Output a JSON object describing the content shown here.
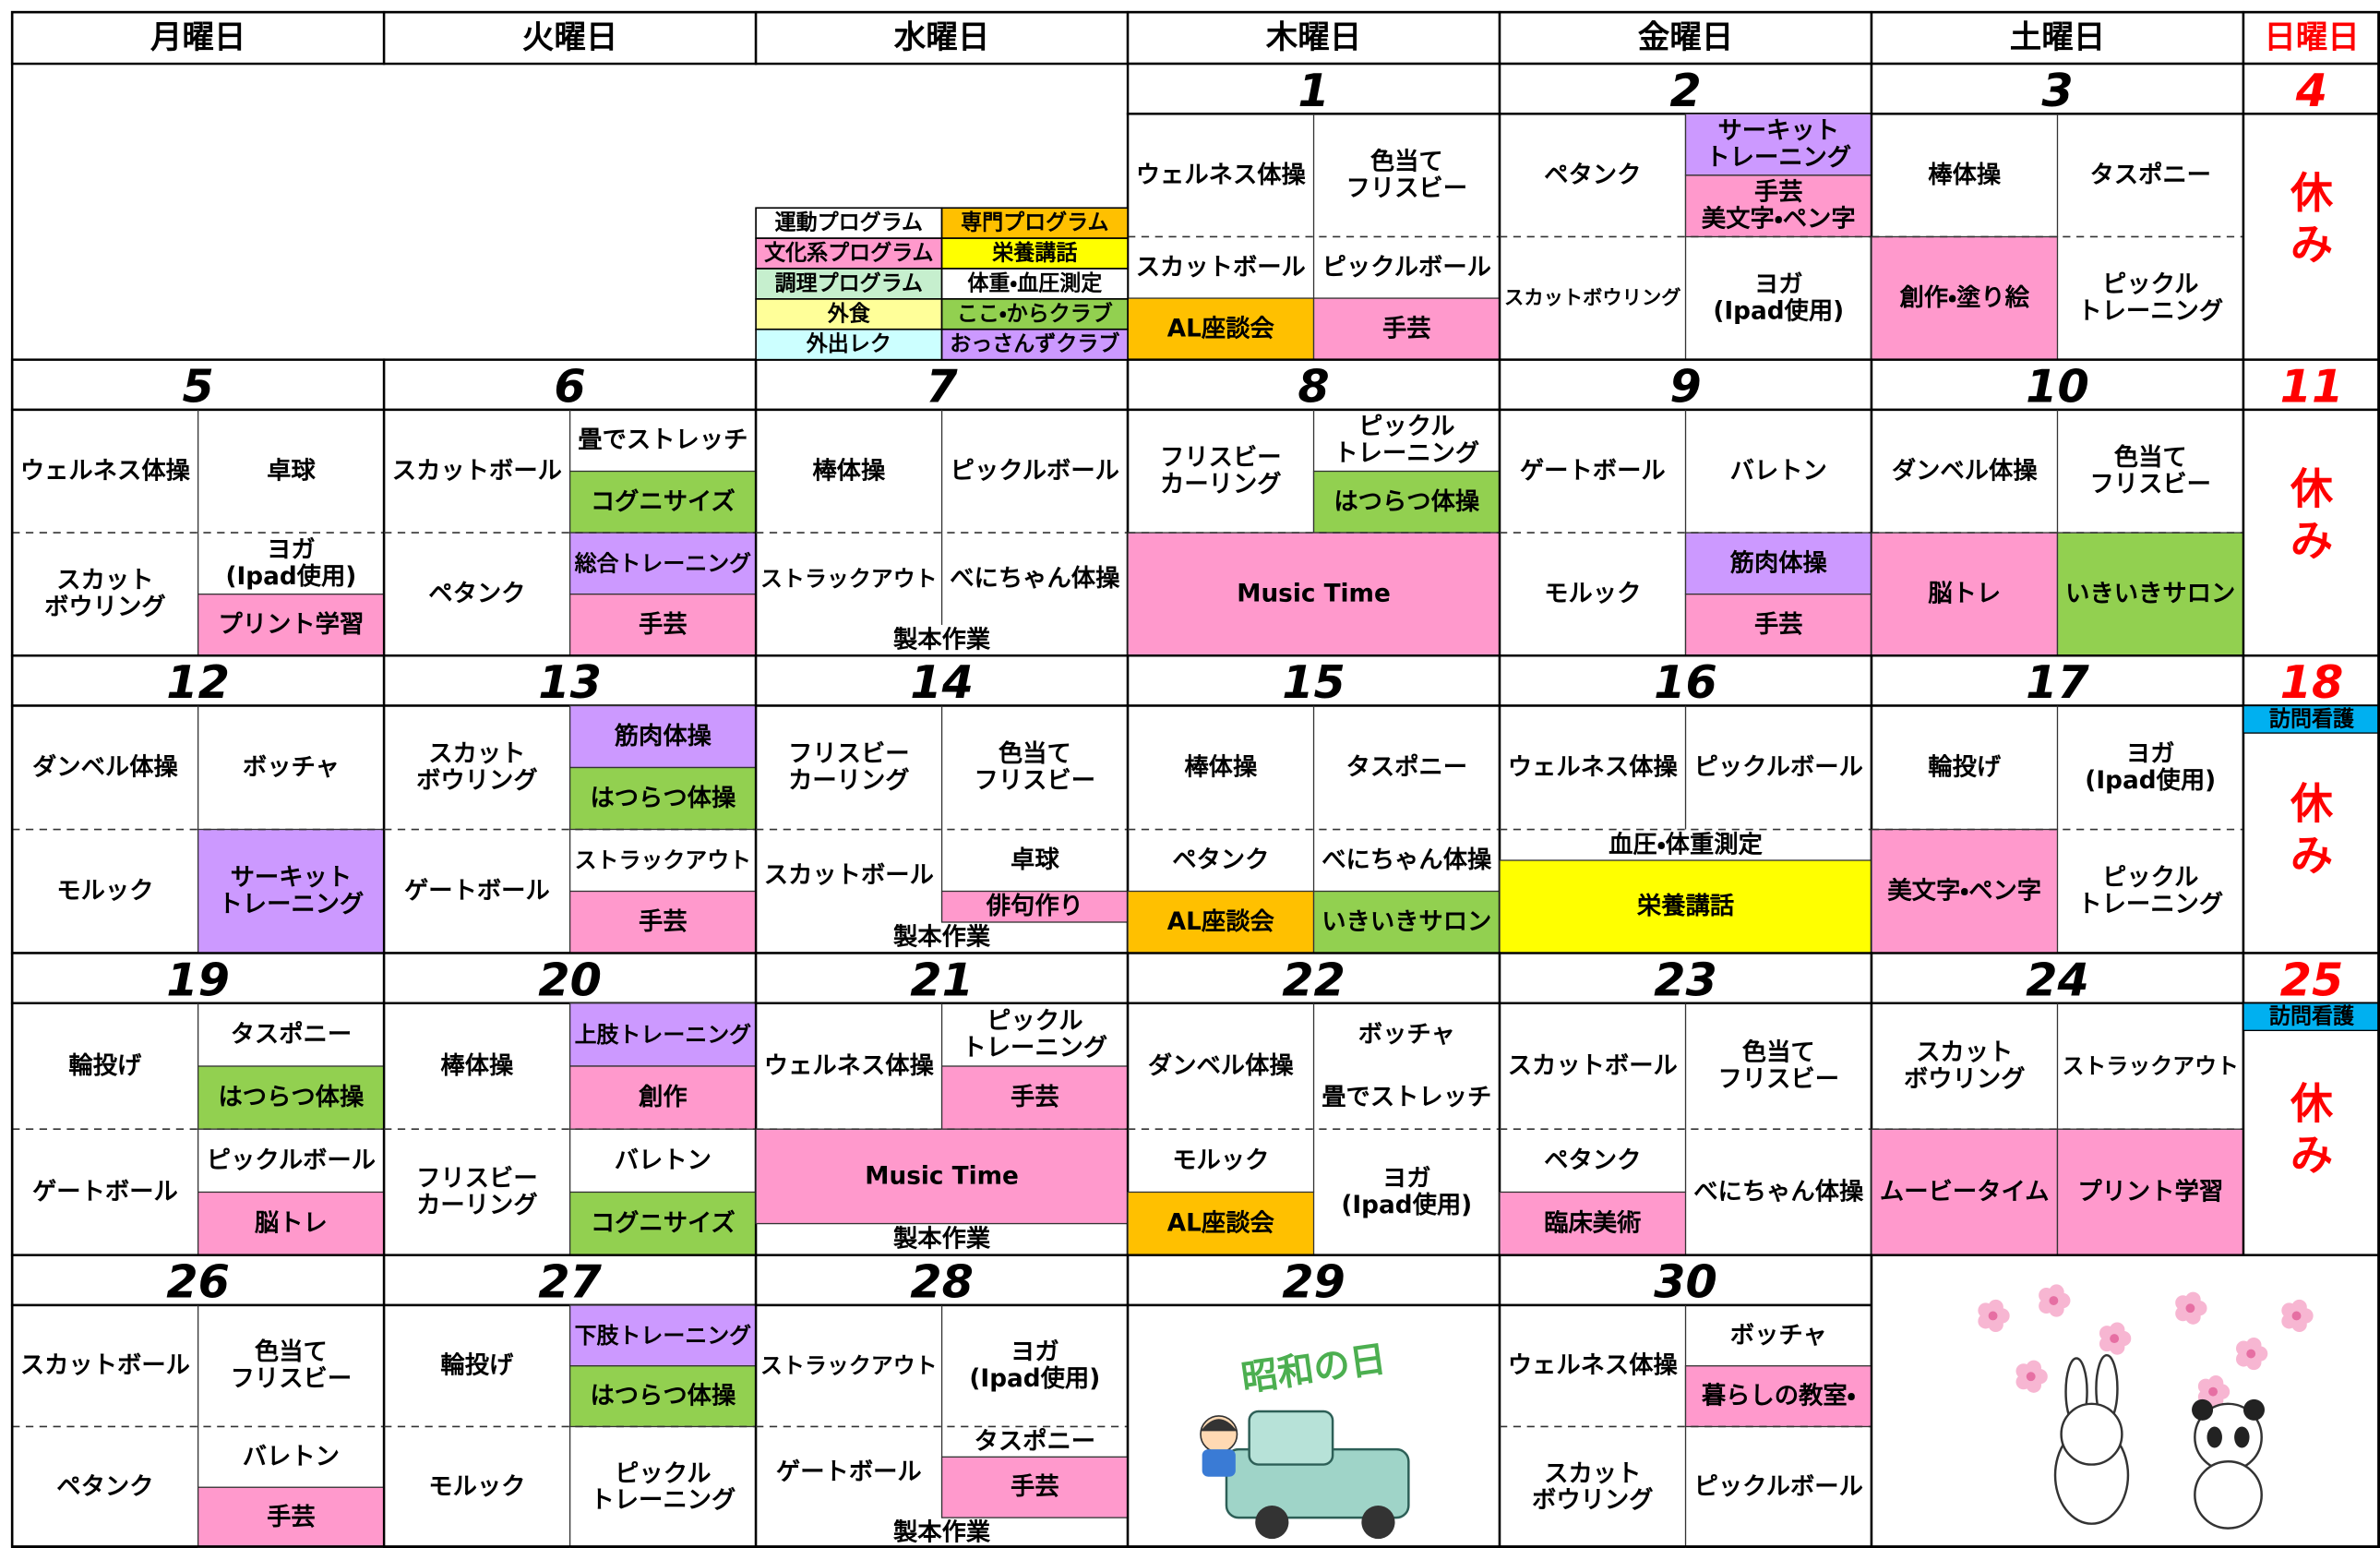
{
  "header": {
    "days": [
      "月曜日",
      "火曜日",
      "水曜日",
      "木曜日",
      "金曜日",
      "土曜日",
      "日曜日"
    ]
  },
  "legend": [
    {
      "text": "運動プログラム"
    },
    {
      "text": "専門プログラム",
      "color": "#ffc000"
    },
    {
      "text": "文化系プログラム",
      "color": "#ff99cc"
    },
    {
      "text": "栄養講話",
      "color": "#ffff00"
    },
    {
      "text": "調理プログラム",
      "color": "#c6efce"
    },
    {
      "text": "体重・血圧測定"
    },
    {
      "text": "外食",
      "color": "#ffff99"
    },
    {
      "text": "ここ・からクラブ",
      "color": "#92d050"
    },
    {
      "text": "外出レク",
      "color": "#ccffff"
    },
    {
      "text": "おっさんずクラブ",
      "color": "#cc99ff"
    }
  ],
  "weeks": [
    [
      null,
      null,
      null,
      {
        "date": 1,
        "activities": [
          {
            "text": "ウェルネス体操"
          },
          {
            "text": "色当て\nフリスビー"
          },
          {
            "text": "スカットボール"
          },
          {
            "text": "ピックルボール"
          },
          {
            "text": "AL座談会",
            "color": "#ffc000"
          },
          {
            "text": "手芸",
            "color": "#ff99cc"
          }
        ]
      },
      {
        "date": 2,
        "activities": [
          {
            "text": "ペタンク"
          },
          {
            "text": "サーキット\nトレーニング",
            "color": "#cc99ff"
          },
          {
            "text": "手芸\n美文字・ペン字",
            "color": "#ff99cc"
          },
          {
            "text": "スカットボウリング"
          },
          {
            "text": "ヨガ\n(Ipad使用)"
          }
        ]
      },
      {
        "date": 3,
        "activities": [
          {
            "text": "棒体操"
          },
          {
            "text": "タスポニー"
          },
          {
            "text": "創作・塗り絵",
            "color": "#ff99cc"
          },
          {
            "text": "ピックル\nトレーニング"
          }
        ]
      },
      {
        "date": 4,
        "closed": "休み"
      }
    ],
    [
      {
        "date": 5,
        "activities": [
          {
            "text": "ウェルネス体操"
          },
          {
            "text": "卓球"
          },
          {
            "text": "スカット\nボウリング"
          },
          {
            "text": "ヨガ\n(Ipad使用)"
          },
          {
            "text": "プリント学習",
            "color": "#ff99cc"
          }
        ]
      },
      {
        "date": 6,
        "activities": [
          {
            "text": "スカットボール"
          },
          {
            "text": "畳でストレッチ"
          },
          {
            "text": "コグニサイズ",
            "color": "#92d050"
          },
          {
            "text": "ペタンク"
          },
          {
            "text": "総合トレーニング",
            "color": "#cc99ff"
          },
          {
            "text": "手芸",
            "color": "#ff99cc"
          }
        ]
      },
      {
        "date": 7,
        "activities": [
          {
            "text": "棒体操"
          },
          {
            "text": "ピックルボール"
          },
          {
            "text": "ストラックアウト"
          },
          {
            "text": "べにちゃん体操"
          },
          {
            "text": "製本作業"
          }
        ]
      },
      {
        "date": 8,
        "activities": [
          {
            "text": "フリスビー\nカーリング"
          },
          {
            "text": "ピックル\nトレーニング"
          },
          {
            "text": "はつらつ体操",
            "color": "#92d050"
          },
          {
            "text": "Music Time",
            "color": "#ff99cc"
          }
        ]
      },
      {
        "date": 9,
        "activities": [
          {
            "text": "ゲートボール"
          },
          {
            "text": "バレトン"
          },
          {
            "text": "モルック"
          },
          {
            "text": "筋肉体操",
            "color": "#cc99ff"
          },
          {
            "text": "手芸",
            "color": "#ff99cc"
          }
        ]
      },
      {
        "date": 10,
        "activities": [
          {
            "text": "ダンベル体操"
          },
          {
            "text": "色当て\nフリスビー"
          },
          {
            "text": "脳トレ",
            "color": "#ff99cc"
          },
          {
            "text": "いきいきサロン",
            "color": "#92d050"
          }
        ]
      },
      {
        "date": 11,
        "closed": "休み"
      }
    ],
    [
      {
        "date": 12,
        "activities": [
          {
            "text": "ダンベル体操"
          },
          {
            "text": "ボッチャ"
          },
          {
            "text": "モルック"
          },
          {
            "text": "サーキット\nトレーニング",
            "color": "#cc99ff"
          }
        ]
      },
      {
        "date": 13,
        "activities": [
          {
            "text": "スカット\nボウリング"
          },
          {
            "text": "筋肉体操",
            "color": "#cc99ff"
          },
          {
            "text": "はつらつ体操",
            "color": "#92d050"
          },
          {
            "text": "ゲートボール"
          },
          {
            "text": "ストラックアウト"
          },
          {
            "text": "手芸",
            "color": "#ff99cc"
          }
        ]
      },
      {
        "date": 14,
        "activities": [
          {
            "text": "フリスビー\nカーリング"
          },
          {
            "text": "色当て\nフリスビー"
          },
          {
            "text": "スカットボール"
          },
          {
            "text": "卓球"
          },
          {
            "text": "俳句作り",
            "color": "#ff99cc"
          },
          {
            "text": "製本作業"
          }
        ]
      },
      {
        "date": 15,
        "activities": [
          {
            "text": "棒体操"
          },
          {
            "text": "タスポニー"
          },
          {
            "text": "ペタンク"
          },
          {
            "text": "べにちゃん体操"
          },
          {
            "text": "AL座談会",
            "color": "#ffc000"
          },
          {
            "text": "いきいきサロン",
            "color": "#92d050"
          }
        ]
      },
      {
        "date": 16,
        "activities": [
          {
            "text": "ウェルネス体操"
          },
          {
            "text": "ピックルボール"
          },
          {
            "text": "血圧・体重測定"
          },
          {
            "text": "栄養講話",
            "color": "#ffff00"
          }
        ]
      },
      {
        "date": 17,
        "activities": [
          {
            "text": "輪投げ"
          },
          {
            "text": "ヨガ\n(Ipad使用)"
          },
          {
            "text": "美文字・ペン字",
            "color": "#ff99cc"
          },
          {
            "text": "ピックル\nトレーニング"
          }
        ]
      },
      {
        "date": 18,
        "note": "訪問看護",
        "closed": "休み"
      }
    ],
    [
      {
        "date": 19,
        "activities": [
          {
            "text": "輪投げ"
          },
          {
            "text": "タスポニー"
          },
          {
            "text": "はつらつ体操",
            "color": "#92d050"
          },
          {
            "text": "ゲートボール"
          },
          {
            "text": "ピックルボール"
          },
          {
            "text": "脳トレ",
            "color": "#ff99cc"
          }
        ]
      },
      {
        "date": 20,
        "activities": [
          {
            "text": "棒体操"
          },
          {
            "text": "上肢トレーニング",
            "color": "#cc99ff"
          },
          {
            "text": "創作",
            "color": "#ff99cc"
          },
          {
            "text": "フリスビー\nカーリング"
          },
          {
            "text": "バレトン"
          },
          {
            "text": "コグニサイズ",
            "color": "#92d050"
          }
        ]
      },
      {
        "date": 21,
        "activities": [
          {
            "text": "ウェルネス体操"
          },
          {
            "text": "ピックル\nトレーニング"
          },
          {
            "text": "手芸",
            "color": "#ff99cc"
          },
          {
            "text": "Music Time",
            "color": "#ff99cc"
          },
          {
            "text": "製本作業"
          }
        ]
      },
      {
        "date": 22,
        "activities": [
          {
            "text": "ダンベル体操"
          },
          {
            "text": "ボッチャ"
          },
          {
            "text": "畳でストレッチ"
          },
          {
            "text": "モルック"
          },
          {
            "text": "AL座談会",
            "color": "#ffc000"
          },
          {
            "text": "ヨガ\n(Ipad使用)"
          }
        ]
      },
      {
        "date": 23,
        "activities": [
          {
            "text": "スカットボール"
          },
          {
            "text": "色当て\nフリスビー"
          },
          {
            "text": "ペタンク"
          },
          {
            "text": "臨床美術",
            "color": "#ff99cc"
          },
          {
            "text": "べにちゃん体操"
          }
        ]
      },
      {
        "date": 24,
        "activities": [
          {
            "text": "スカット\nボウリング"
          },
          {
            "text": "ストラックアウト"
          },
          {
            "text": "ムービータイム",
            "color": "#ff99cc"
          },
          {
            "text": "プリント学習",
            "color": "#ff99cc"
          }
        ]
      },
      {
        "date": 25,
        "note": "訪問看護",
        "closed": "休み"
      }
    ],
    [
      {
        "date": 26,
        "activities": [
          {
            "text": "スカットボール"
          },
          {
            "text": "色当て\nフリスビー"
          },
          {
            "text": "ペタンク"
          },
          {
            "text": "バレトン"
          },
          {
            "text": "手芸",
            "color": "#ff99cc"
          }
        ]
      },
      {
        "date": 27,
        "activities": [
          {
            "text": "輪投げ"
          },
          {
            "text": "下肢トレーニング",
            "color": "#cc99ff"
          },
          {
            "text": "はつらつ体操",
            "color": "#92d050"
          },
          {
            "text": "モルック"
          },
          {
            "text": "ピックル\nトレーニング"
          }
        ]
      },
      {
        "date": 28,
        "activities": [
          {
            "text": "ストラックアウト"
          },
          {
            "text": "ヨガ\n(Ipad使用)"
          },
          {
            "text": "ゲートボール"
          },
          {
            "text": "タスポニー"
          },
          {
            "text": "手芸",
            "color": "#ff99cc"
          },
          {
            "text": "製本作業"
          }
        ]
      },
      {
        "date": 29,
        "holiday": "昭和の日"
      },
      {
        "date": 30,
        "activities": [
          {
            "text": "ウェルネス体操"
          },
          {
            "text": "ボッチャ"
          },
          {
            "text": "暮らしの教室・",
            "color": "#ff99cc"
          },
          {
            "text": "スカット\nボウリング"
          },
          {
            "text": "ピックルボール"
          }
        ]
      },
      null,
      null
    ]
  ]
}
